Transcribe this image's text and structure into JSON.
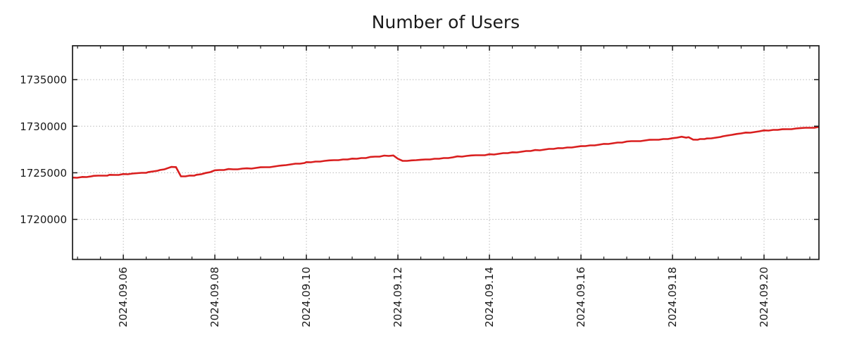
{
  "chart_data": {
    "type": "line",
    "title": "Number of Users",
    "xlabel": "",
    "ylabel": "",
    "grid": {
      "show": true,
      "style": "dotted",
      "color": "#a9a9a9"
    },
    "legend": {
      "show": false
    },
    "background": "#ffffff",
    "axis_color": "#1a1a1a",
    "x_axis": {
      "unit": "date (September 2024, day-of-month as number)",
      "range": [
        4.89,
        21.2
      ],
      "major_tick_positions": [
        6,
        8,
        10,
        12,
        14,
        16,
        18,
        20
      ],
      "major_tick_labels": [
        "2024.09.06",
        "2024.09.08",
        "2024.09.10",
        "2024.09.12",
        "2024.09.14",
        "2024.09.16",
        "2024.09.18",
        "2024.09.20"
      ],
      "minor_tick_interval": 0.5,
      "label_rotation_deg": 90
    },
    "y_axis": {
      "range": [
        1715700,
        1738635
      ],
      "tick_values": [
        1720000,
        1725000,
        1730000,
        1735000
      ],
      "tick_labels": [
        "1720000",
        "1725000",
        "1730000",
        "1735000"
      ]
    },
    "series": [
      {
        "name": "Number of Users",
        "color": "#d91e1e",
        "line_width": 2.6,
        "points": [
          [
            4.89,
            1724490
          ],
          [
            5.1,
            1724560
          ],
          [
            5.35,
            1724670
          ],
          [
            5.7,
            1724780
          ],
          [
            6.0,
            1724870
          ],
          [
            6.3,
            1724960
          ],
          [
            6.55,
            1725080
          ],
          [
            6.8,
            1725300
          ],
          [
            7.0,
            1725550
          ],
          [
            7.05,
            1725630
          ],
          [
            7.15,
            1725610
          ],
          [
            7.26,
            1724620
          ],
          [
            7.45,
            1724700
          ],
          [
            7.6,
            1724780
          ],
          [
            7.8,
            1724980
          ],
          [
            8.0,
            1725270
          ],
          [
            8.3,
            1725400
          ],
          [
            8.7,
            1725480
          ],
          [
            9.0,
            1725590
          ],
          [
            9.46,
            1725780
          ],
          [
            10.0,
            1726140
          ],
          [
            10.5,
            1726330
          ],
          [
            11.0,
            1726520
          ],
          [
            11.4,
            1726700
          ],
          [
            11.7,
            1726850
          ],
          [
            11.9,
            1726860
          ],
          [
            12.1,
            1726290
          ],
          [
            12.3,
            1726330
          ],
          [
            12.5,
            1726400
          ],
          [
            13.0,
            1726580
          ],
          [
            13.3,
            1726760
          ],
          [
            13.6,
            1726860
          ],
          [
            14.0,
            1726990
          ],
          [
            14.5,
            1727200
          ],
          [
            15.0,
            1727440
          ],
          [
            15.5,
            1727650
          ],
          [
            16.0,
            1727860
          ],
          [
            16.5,
            1728100
          ],
          [
            17.0,
            1728360
          ],
          [
            17.5,
            1728540
          ],
          [
            18.0,
            1728710
          ],
          [
            18.2,
            1728870
          ],
          [
            18.35,
            1728820
          ],
          [
            18.45,
            1728560
          ],
          [
            18.6,
            1728620
          ],
          [
            18.75,
            1728680
          ],
          [
            19.1,
            1728920
          ],
          [
            19.4,
            1729170
          ],
          [
            19.6,
            1729320
          ],
          [
            20.0,
            1729550
          ],
          [
            20.4,
            1729670
          ],
          [
            20.8,
            1729800
          ],
          [
            21.2,
            1729930
          ]
        ]
      }
    ]
  }
}
